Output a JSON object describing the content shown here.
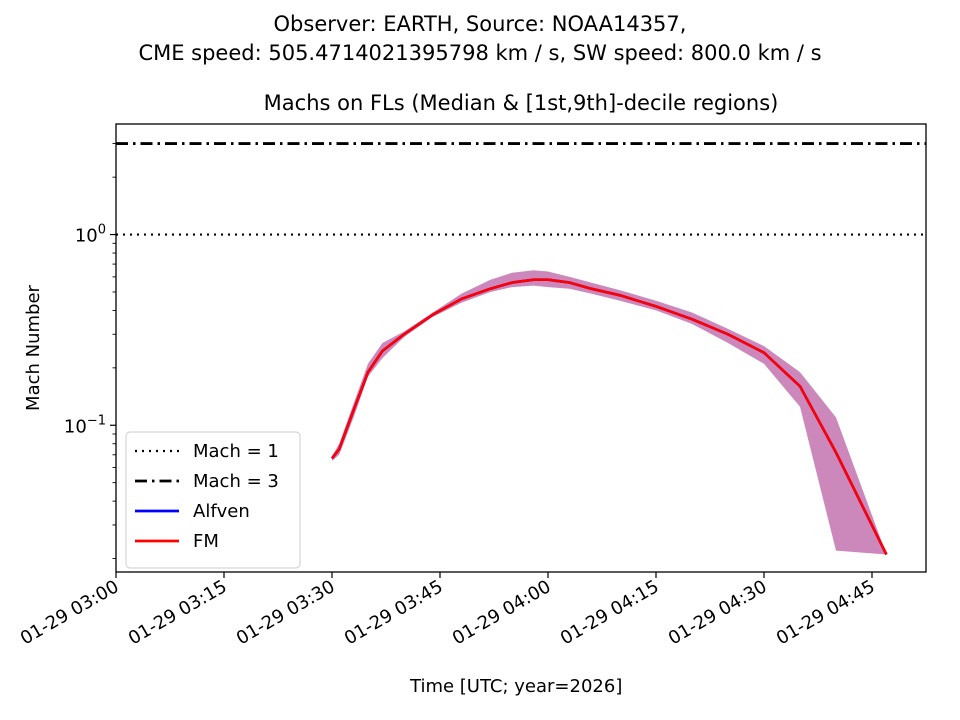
{
  "suptitle_line1": "Observer: EARTH, Source: NOAA14357,",
  "suptitle_line2": "CME speed: 505.4714021395798 km / s, SW speed: 800.0 km / s",
  "chart_data": {
    "type": "line",
    "title": "Machs on FLs (Median & [1st,9th]-decile regions)",
    "xlabel": "Time [UTC; year=2026]",
    "ylabel": "Mach Number",
    "yscale": "log",
    "ylim": [
      0.017,
      3.8
    ],
    "xlim": [
      "01-29 03:00",
      "01-29 04:45"
    ],
    "x_ticks": [
      "01-29 03:00",
      "01-29 03:15",
      "01-29 03:30",
      "01-29 03:45",
      "01-29 04:00",
      "01-29 04:15",
      "01-29 04:30",
      "01-29 04:45"
    ],
    "y_ticks": [
      {
        "value": 1,
        "base": "10",
        "exp": "0"
      },
      {
        "value": 0.1,
        "base": "10",
        "exp": "−1"
      }
    ],
    "grid": false,
    "legend_position": "lower-left",
    "hlines": [
      {
        "name": "Mach = 1",
        "y": 1,
        "style": "dotted",
        "color": "#000000"
      },
      {
        "name": "Mach = 3",
        "y": 3,
        "style": "dashdot",
        "color": "#000000"
      }
    ],
    "series": [
      {
        "name": "Alfven",
        "color": "#0000ff",
        "x": [
          "03:30",
          "03:31",
          "03:33",
          "03:35",
          "03:37",
          "03:40",
          "03:44",
          "03:48",
          "03:52",
          "03:55",
          "03:58",
          "04:00",
          "04:03",
          "04:06",
          "04:10",
          "04:15",
          "04:20",
          "04:25",
          "04:30",
          "04:35",
          "04:40",
          "04:47"
        ],
        "y": [
          0.067,
          0.075,
          0.12,
          0.19,
          0.245,
          0.3,
          0.38,
          0.46,
          0.52,
          0.56,
          0.58,
          0.58,
          0.56,
          0.52,
          0.48,
          0.42,
          0.36,
          0.3,
          0.24,
          0.16,
          0.072,
          0.021
        ]
      },
      {
        "name": "FM",
        "color": "#ff0000",
        "x": [
          "03:30",
          "03:31",
          "03:33",
          "03:35",
          "03:37",
          "03:40",
          "03:44",
          "03:48",
          "03:52",
          "03:55",
          "03:58",
          "04:00",
          "04:03",
          "04:06",
          "04:10",
          "04:15",
          "04:20",
          "04:25",
          "04:30",
          "04:35",
          "04:40",
          "04:47"
        ],
        "y": [
          0.067,
          0.075,
          0.12,
          0.19,
          0.245,
          0.3,
          0.38,
          0.46,
          0.52,
          0.56,
          0.58,
          0.58,
          0.56,
          0.52,
          0.48,
          0.42,
          0.36,
          0.3,
          0.24,
          0.16,
          0.072,
          0.021
        ]
      }
    ],
    "band": {
      "color": "#cc88bb",
      "x": [
        "03:30",
        "03:31",
        "03:33",
        "03:35",
        "03:37",
        "03:40",
        "03:44",
        "03:48",
        "03:52",
        "03:55",
        "03:58",
        "04:00",
        "04:03",
        "04:06",
        "04:10",
        "04:15",
        "04:20",
        "04:25",
        "04:30",
        "04:35",
        "04:40",
        "04:47"
      ],
      "upper": [
        0.069,
        0.08,
        0.13,
        0.21,
        0.27,
        0.31,
        0.39,
        0.49,
        0.58,
        0.63,
        0.65,
        0.64,
        0.6,
        0.56,
        0.51,
        0.45,
        0.39,
        0.32,
        0.26,
        0.19,
        0.11,
        0.021
      ],
      "lower": [
        0.065,
        0.07,
        0.11,
        0.18,
        0.225,
        0.29,
        0.37,
        0.44,
        0.5,
        0.53,
        0.54,
        0.53,
        0.52,
        0.49,
        0.45,
        0.4,
        0.34,
        0.27,
        0.21,
        0.125,
        0.022,
        0.021
      ]
    }
  }
}
